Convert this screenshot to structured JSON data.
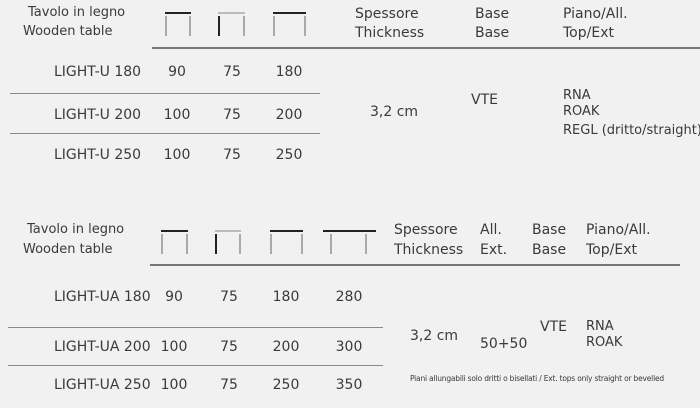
{
  "table_u": {
    "title_it": "Tavolo in legno",
    "title_en": "Wooden table",
    "icons": [
      "top-length-icon",
      "leg-height-icon",
      "width-icon"
    ],
    "headers": {
      "thickness_it": "Spessore",
      "thickness_en": "Thickness",
      "base_it": "Base",
      "base_en": "Base",
      "top_it": "Piano/All.",
      "top_en": "Top/Ext"
    },
    "rows": [
      {
        "model": "LIGHT-U 180",
        "v1": "90",
        "v2": "75",
        "v3": "180"
      },
      {
        "model": "LIGHT-U 200",
        "v1": "100",
        "v2": "75",
        "v3": "200"
      },
      {
        "model": "LIGHT-U 250",
        "v1": "100",
        "v2": "75",
        "v3": "250"
      }
    ],
    "thickness": "3,2 cm",
    "base": "VTE",
    "tops": [
      "RNA",
      "ROAK",
      "REGL (dritto/straight)"
    ]
  },
  "table_ua": {
    "title_it": "Tavolo in legno",
    "title_en": "Wooden table",
    "headers": {
      "thickness_it": "Spessore",
      "thickness_en": "Thickness",
      "ext_it": "All.",
      "ext_en": "Ext.",
      "base_it": "Base",
      "base_en": "Base",
      "top_it": "Piano/All.",
      "top_en": "Top/Ext"
    },
    "rows": [
      {
        "model": "LIGHT-UA 180",
        "v1": "90",
        "v2": "75",
        "v3": "180",
        "v4": "280"
      },
      {
        "model": "LIGHT-UA 200",
        "v1": "100",
        "v2": "75",
        "v3": "200",
        "v4": "300"
      },
      {
        "model": "LIGHT-UA 250",
        "v1": "100",
        "v2": "75",
        "v3": "250",
        "v4": "350"
      }
    ],
    "thickness": "3,2 cm",
    "extension": "50+50",
    "base": "VTE",
    "tops": [
      "RNA",
      "ROAK"
    ],
    "note": "Piani allungabili solo dritti o bisellati / Ext. tops only straight or bevelled"
  }
}
